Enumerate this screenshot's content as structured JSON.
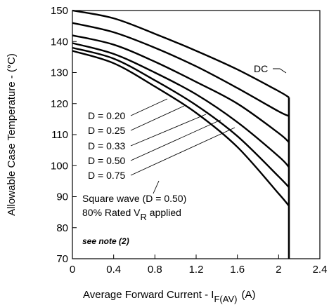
{
  "chart_data": {
    "type": "line",
    "title": "",
    "xlabel": {
      "main": "Average Forward Current - I",
      "sub": "F(AV)",
      "unit": "(A)"
    },
    "ylabel": "Allowable Case Temperature - (°C)",
    "xlim": [
      0,
      2.4
    ],
    "ylim": [
      70,
      150
    ],
    "x_ticks": [
      0,
      0.4,
      0.8,
      1.2,
      1.6,
      2,
      2.4
    ],
    "x_tick_labels": [
      "0",
      "0.4",
      "0.8",
      "1.2",
      "1.6",
      "2",
      "2.4"
    ],
    "y_ticks": [
      70,
      80,
      90,
      100,
      110,
      120,
      130,
      140,
      150
    ],
    "y_tick_labels": [
      "70",
      "80",
      "90",
      "100",
      "110",
      "120",
      "130",
      "140",
      "150"
    ],
    "grid": false,
    "series": [
      {
        "name": "DC",
        "x": [
          0,
          0.4,
          0.8,
          1.2,
          1.6,
          2.0,
          2.1
        ],
        "y": [
          150,
          147.5,
          142.5,
          137,
          131,
          124,
          122
        ]
      },
      {
        "name": "D = 0.20",
        "x": [
          0,
          0.4,
          0.8,
          1.2,
          1.6,
          2.0,
          2.1
        ],
        "y": [
          146,
          143,
          138,
          132,
          125,
          117.5,
          116
        ]
      },
      {
        "name": "D = 0.25",
        "x": [
          0,
          0.4,
          0.8,
          1.2,
          1.6,
          2.0,
          2.1
        ],
        "y": [
          142,
          139,
          133.5,
          127,
          120,
          110.5,
          107.5
        ]
      },
      {
        "name": "D = 0.33",
        "x": [
          0,
          0.4,
          0.8,
          1.2,
          1.6,
          2.0,
          2.1
        ],
        "y": [
          139.5,
          136,
          130,
          123,
          114,
          103,
          99.5
        ]
      },
      {
        "name": "D = 0.50",
        "x": [
          0,
          0.4,
          0.8,
          1.2,
          1.6,
          2.0,
          2.1
        ],
        "y": [
          138,
          134.5,
          127.5,
          119.5,
          109.5,
          96.5,
          93
        ]
      },
      {
        "name": "D = 0.75",
        "x": [
          0,
          0.4,
          0.8,
          1.2,
          1.6,
          2.0,
          2.1
        ],
        "y": [
          137,
          133,
          125.5,
          117,
          106,
          91,
          87
        ]
      }
    ],
    "limit_line": {
      "x": 2.1,
      "y_from": 70,
      "y_to": 122
    },
    "annotations": {
      "dc_label": "DC",
      "duty_labels": [
        "D = 0.20",
        "D = 0.25",
        "D = 0.33",
        "D = 0.50",
        "D = 0.75"
      ],
      "square_wave": "Square wave (D = 0.50)",
      "rated_prefix": "80% Rated V",
      "rated_sub": "R",
      "rated_suffix": " applied",
      "note": "see note (2)"
    }
  }
}
